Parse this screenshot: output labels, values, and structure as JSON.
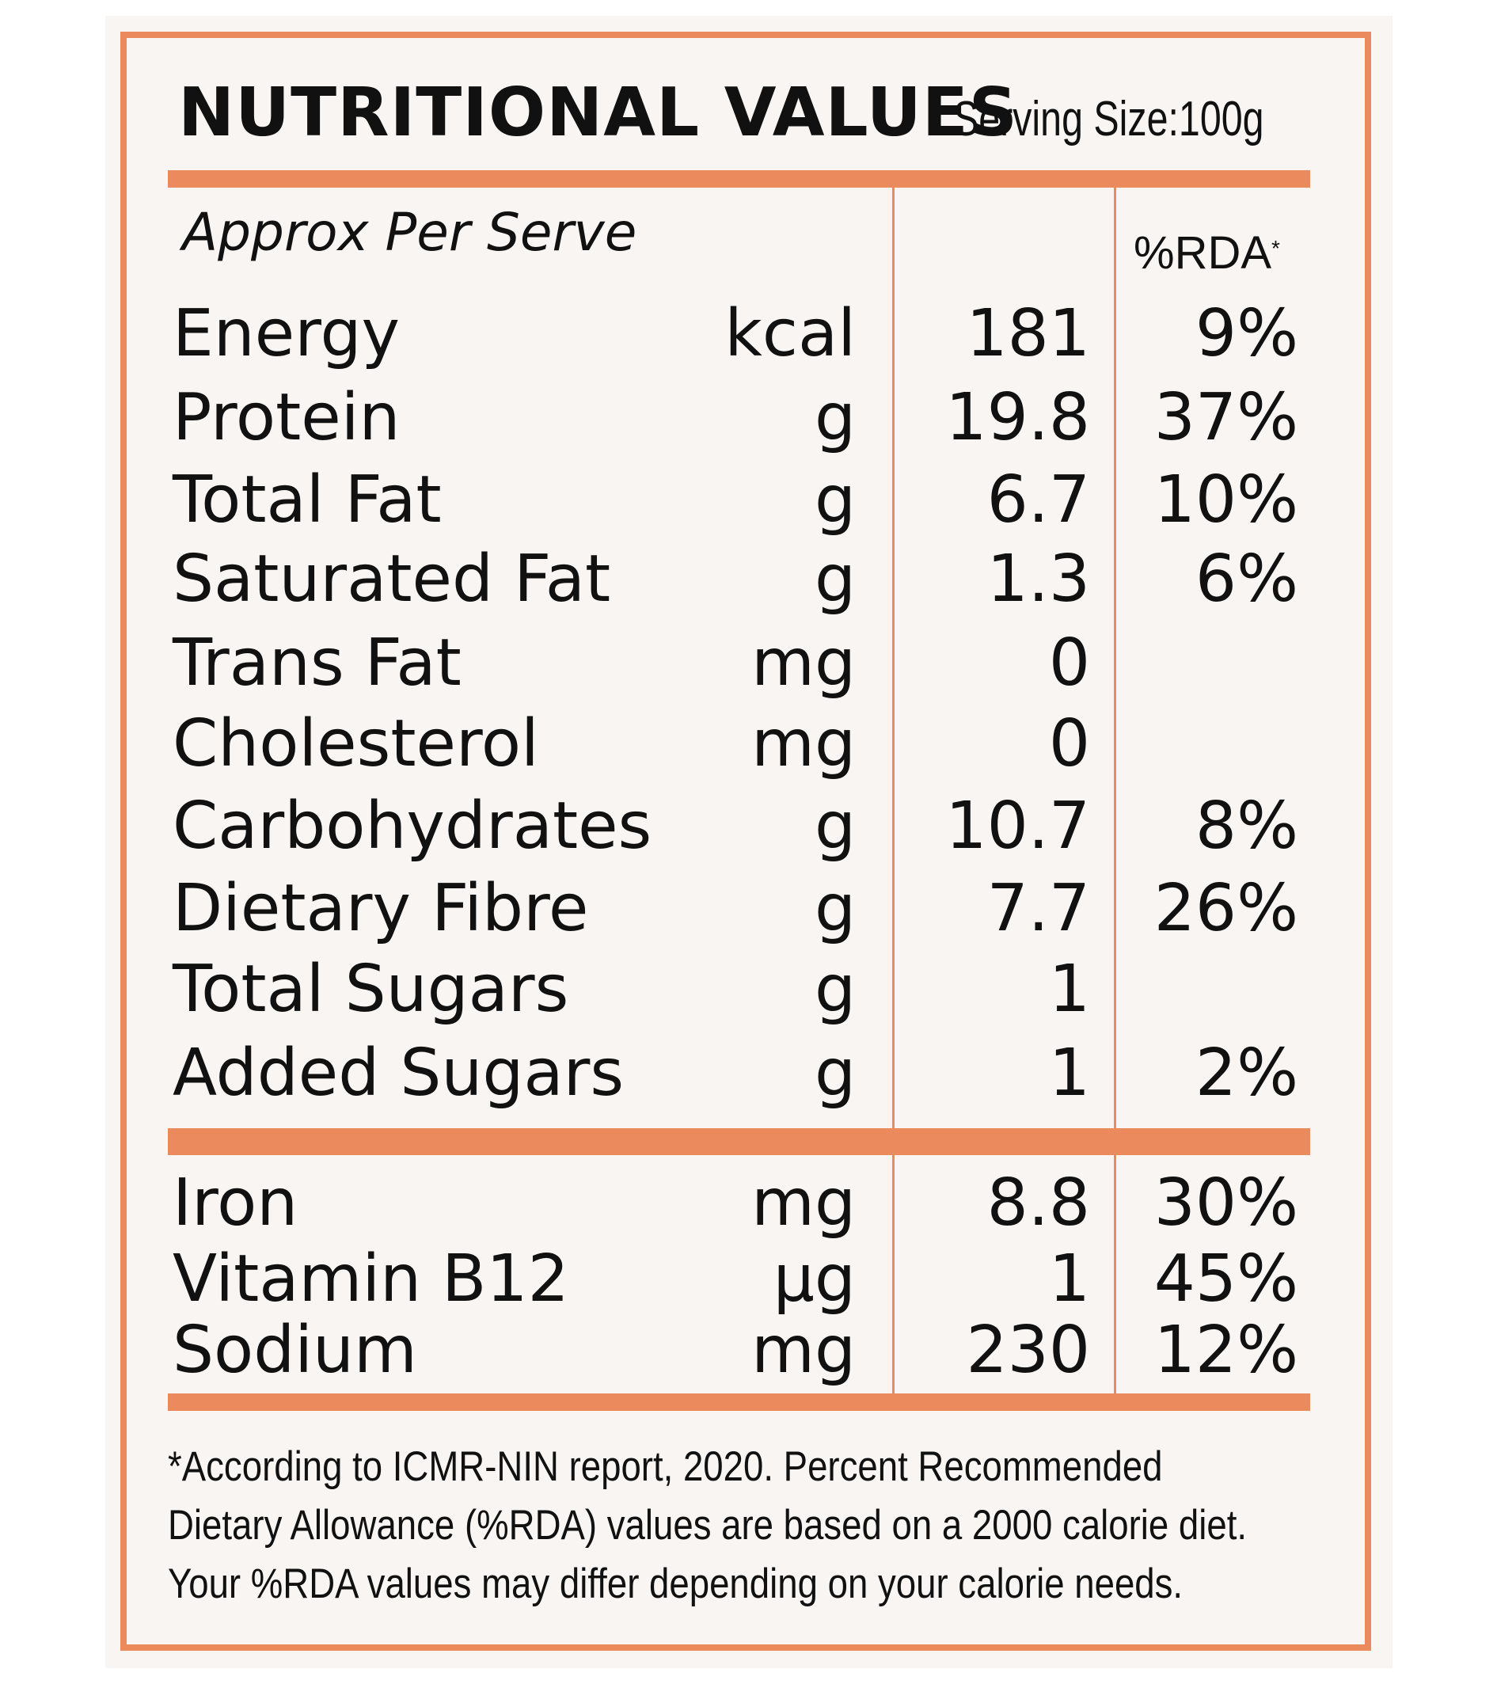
{
  "colors": {
    "accent": "#ea8a5d",
    "background": "#f8f5f2",
    "text": "#111111"
  },
  "header": {
    "title": "NUTRITIONAL VALUES",
    "serving_size": "Serving Size:100g"
  },
  "columns": {
    "approx_label": "Approx Per Serve",
    "rda_label": "%RDA",
    "rda_marker": "*"
  },
  "nutrients": [
    {
      "name": "Energy",
      "unit": "kcal",
      "value": "181",
      "rda": "9%"
    },
    {
      "name": "Protein",
      "unit": "g",
      "value": "19.8",
      "rda": "37%"
    },
    {
      "name": "Total Fat",
      "unit": "g",
      "value": "6.7",
      "rda": "10%"
    },
    {
      "name": "Saturated Fat",
      "unit": "g",
      "value": "1.3",
      "rda": "6%"
    },
    {
      "name": "Trans Fat",
      "unit": "mg",
      "value": "0",
      "rda": ""
    },
    {
      "name": "Cholesterol",
      "unit": "mg",
      "value": "0",
      "rda": ""
    },
    {
      "name": "Carbohydrates",
      "unit": "g",
      "value": "10.7",
      "rda": "8%"
    },
    {
      "name": "Dietary Fibre",
      "unit": "g",
      "value": "7.7",
      "rda": "26%"
    },
    {
      "name": "Total Sugars",
      "unit": "g",
      "value": "1",
      "rda": ""
    },
    {
      "name": "Added Sugars",
      "unit": "g",
      "value": "1",
      "rda": "2%"
    }
  ],
  "minerals": [
    {
      "name": "Iron",
      "unit": "mg",
      "value": "8.8",
      "rda": "30%"
    },
    {
      "name": "Vitamin B12",
      "unit": "µg",
      "value": "1",
      "rda": "45%"
    },
    {
      "name": "Sodium",
      "unit": "mg",
      "value": "230",
      "rda": "12%"
    }
  ],
  "footnote": {
    "line1": "*According to ICMR-NIN report, 2020. Percent Recommended",
    "line2": "Dietary Allowance (%RDA) values are based on a 2000 calorie diet.",
    "line3": "Your %RDA values may differ depending on your calorie needs."
  }
}
